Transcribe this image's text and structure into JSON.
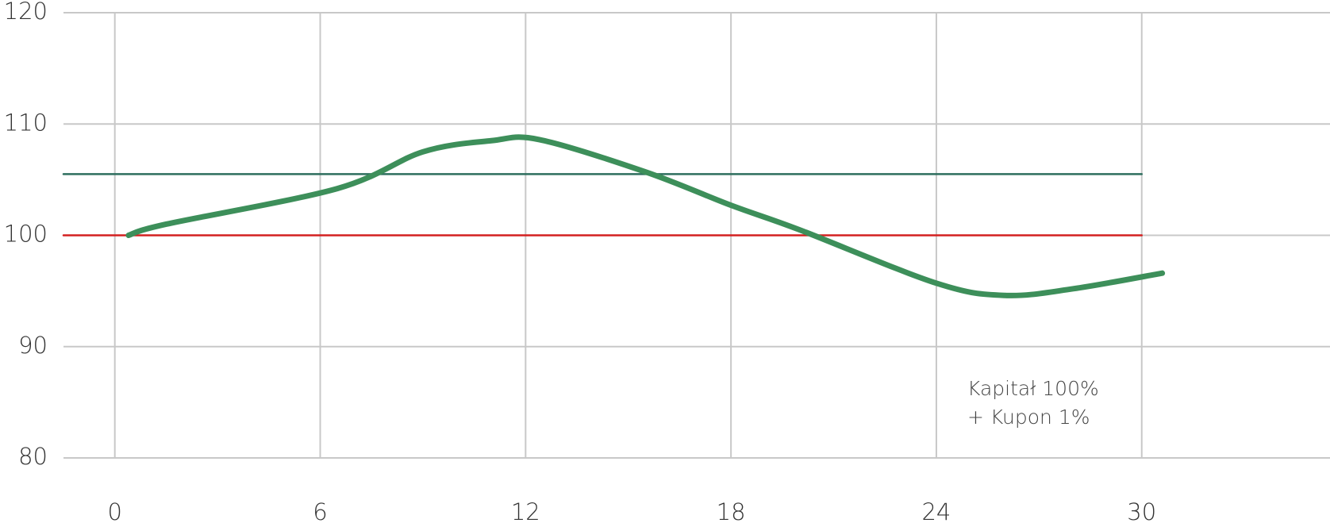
{
  "chart_data": {
    "type": "line",
    "xlim": [
      -1.5,
      35.5
    ],
    "xticks": [
      0,
      6,
      12,
      18,
      24,
      30
    ],
    "ylim": [
      80,
      120
    ],
    "yticks": [
      80,
      90,
      100,
      110,
      120
    ],
    "grid": true,
    "annotation": [
      "Kapitał 100%",
      "+ Kupon 1%"
    ],
    "series": [
      {
        "color": "#d42020",
        "x": [
          -1.5,
          30
        ],
        "values": [
          100,
          100
        ]
      },
      {
        "color": "#2e6e5e",
        "x": [
          -1.5,
          30
        ],
        "values": [
          105.5,
          105.5
        ]
      },
      {
        "color": "#3d8f5a",
        "x": [
          0.4,
          1.5,
          6.5,
          9,
          11,
          12.4,
          15.5,
          18,
          20,
          24,
          26,
          28,
          30.6
        ],
        "values": [
          100,
          101,
          104.2,
          107.5,
          108.5,
          108.6,
          105.7,
          102.7,
          100.5,
          95.7,
          94.6,
          95.2,
          96.6
        ]
      }
    ]
  }
}
